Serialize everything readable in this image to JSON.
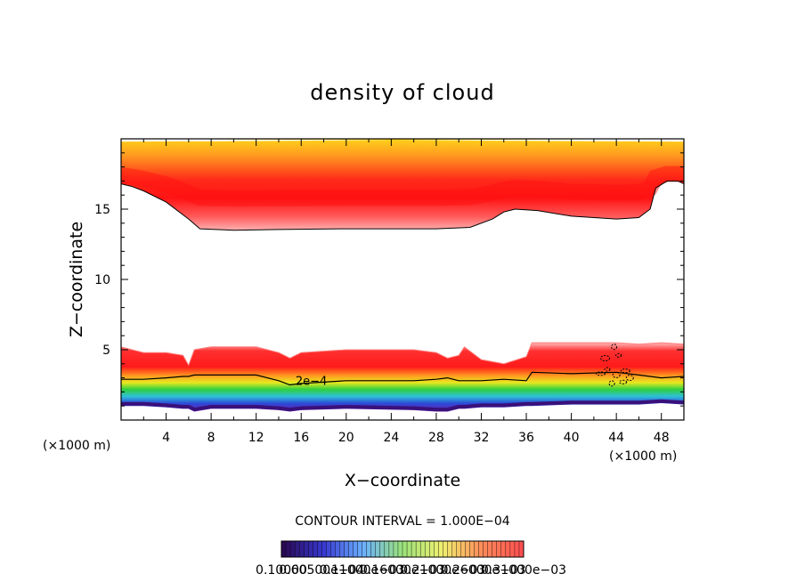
{
  "chart_data": {
    "type": "heatmap",
    "title": "density of cloud",
    "xlabel": "X−coordinate",
    "ylabel": "Z−coordinate",
    "x_unit_left": "(×1000 m)",
    "x_unit_right": "(×1000 m)",
    "xlim": [
      0,
      50
    ],
    "ylim": [
      0,
      20
    ],
    "xticks": [
      4,
      8,
      12,
      16,
      20,
      24,
      28,
      32,
      36,
      40,
      44,
      48
    ],
    "yticks": [
      5,
      10,
      15
    ],
    "grid": false,
    "contour_interval_text": "CONTOUR INTERVAL = 1.000E−04",
    "contour_label": "2e−4",
    "contour_label_pos": [
      15.5,
      2.5
    ],
    "colorbar_labels": [
      "0.10000",
      "0.60500e−04",
      "0.11000e−03",
      "0.16000e−03",
      "0.21000e−03",
      "0.26000e−03",
      "0.31000e−03"
    ],
    "colorbar_stops": [
      "#2a0a55",
      "#3838d0",
      "#6ab0ff",
      "#9be27a",
      "#f0f070",
      "#ff8c5a",
      "#ff5050"
    ],
    "palette": {
      "purple": "#6a1fb0",
      "blue": "#2b4bd8",
      "cyan": "#2fc0d8",
      "green": "#2fd040",
      "yellow": "#e8e820",
      "orange": "#ff9a20",
      "red": "#ff1a1a",
      "pink": "#ff8a8a"
    },
    "upper_layer": {
      "top": 19.8,
      "base_x": [
        0,
        1,
        2,
        4,
        6,
        7,
        10,
        14,
        20,
        25,
        28,
        31,
        33,
        34,
        35,
        37,
        40,
        44,
        46,
        47,
        47.5,
        48.5,
        49.5,
        50
      ],
      "base_z": [
        16.8,
        16.6,
        16.3,
        15.5,
        14.3,
        13.6,
        13.5,
        13.55,
        13.6,
        13.6,
        13.6,
        13.7,
        14.3,
        14.8,
        15.0,
        14.9,
        14.5,
        14.3,
        14.4,
        15.0,
        16.5,
        17.0,
        17.0,
        16.8
      ],
      "core_z": 16.3
    },
    "lower_layer": {
      "x": [
        0,
        2,
        4,
        5.5,
        6,
        6.5,
        8,
        12,
        14,
        15,
        16,
        20,
        26,
        28,
        29,
        30,
        30.5,
        32,
        34,
        36,
        36.5,
        40,
        44,
        46,
        48,
        50
      ],
      "top_z": [
        5.2,
        4.8,
        4.8,
        4.6,
        3.9,
        5.0,
        5.2,
        5.2,
        4.8,
        4.4,
        4.8,
        5.0,
        5.0,
        4.8,
        4.4,
        4.6,
        5.2,
        4.3,
        4.0,
        4.5,
        5.5,
        5.5,
        5.5,
        5.4,
        5.5,
        5.4
      ],
      "contour_2e4_z": [
        2.9,
        2.9,
        3.0,
        3.1,
        3.1,
        3.2,
        3.2,
        3.2,
        2.8,
        2.5,
        2.6,
        2.8,
        2.8,
        2.9,
        3.0,
        2.8,
        2.8,
        2.8,
        2.9,
        2.8,
        3.4,
        3.3,
        3.4,
        3.2,
        3.0,
        3.1
      ],
      "bottom_z": [
        1.0,
        1.0,
        0.9,
        0.8,
        0.8,
        0.6,
        0.8,
        0.8,
        0.7,
        0.6,
        0.7,
        0.8,
        0.7,
        0.6,
        0.6,
        0.8,
        0.8,
        0.9,
        0.9,
        1.0,
        1.0,
        1.1,
        1.1,
        1.1,
        1.2,
        1.1
      ]
    }
  }
}
